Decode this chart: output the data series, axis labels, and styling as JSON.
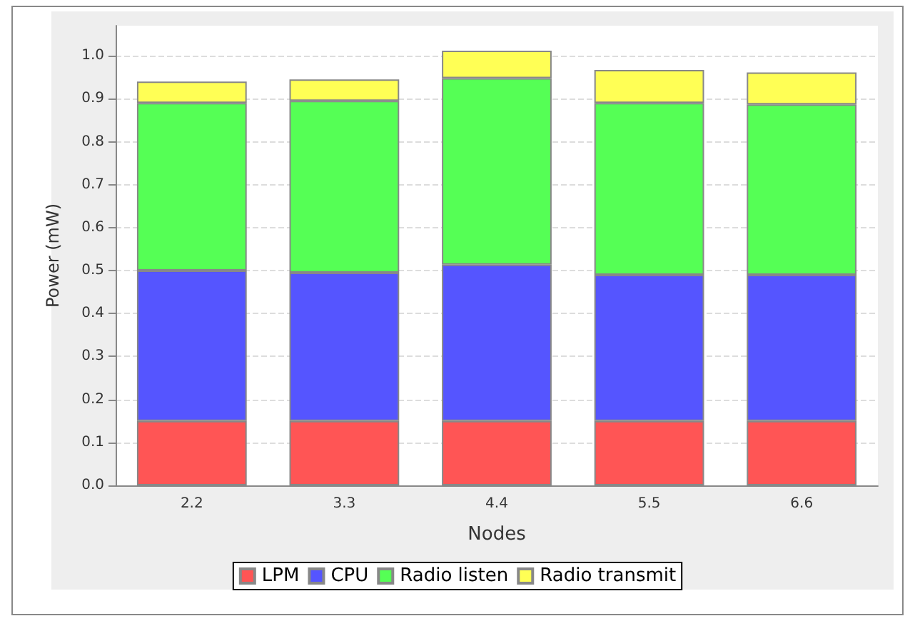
{
  "chart_data": {
    "type": "bar",
    "stacked": true,
    "xlabel": "Nodes",
    "ylabel": "Power (mW)",
    "categories": [
      "2.2",
      "3.3",
      "4.4",
      "5.5",
      "6.6"
    ],
    "series": [
      {
        "name": "LPM",
        "color": "#ff5555",
        "values": [
          0.15,
          0.15,
          0.15,
          0.15,
          0.15
        ]
      },
      {
        "name": "CPU",
        "color": "#5555ff",
        "values": [
          0.35,
          0.345,
          0.364,
          0.34,
          0.34
        ]
      },
      {
        "name": "Radio listen",
        "color": "#55ff55",
        "values": [
          0.39,
          0.4,
          0.434,
          0.4,
          0.397
        ]
      },
      {
        "name": "Radio transmit",
        "color": "#ffff55",
        "values": [
          0.05,
          0.05,
          0.064,
          0.077,
          0.074
        ]
      }
    ],
    "ylim": [
      0,
      1.07
    ],
    "yticks": [
      {
        "value": 0,
        "label": "0.0"
      },
      0.1,
      0.2,
      0.3,
      0.4,
      0.5,
      0.6,
      0.7,
      0.8,
      0.9,
      {
        "value": 1,
        "label": "1.0"
      }
    ],
    "grid": "y",
    "legend": "bottom"
  }
}
